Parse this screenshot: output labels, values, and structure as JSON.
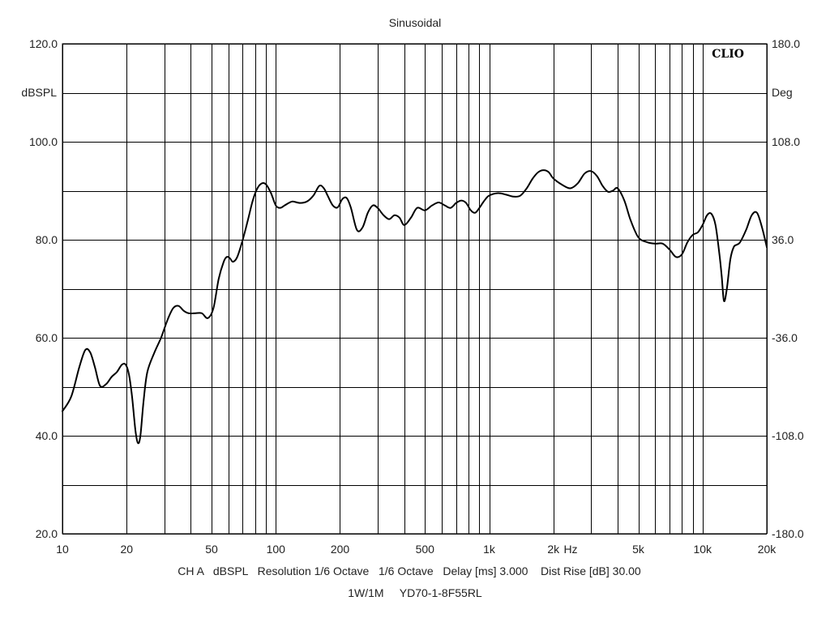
{
  "chart_data": {
    "type": "line",
    "title": "Sinusoidal",
    "x_scale": "log",
    "xlim": [
      10,
      20000
    ],
    "ylim": [
      20,
      120
    ],
    "y2lim": [
      -180,
      180
    ],
    "grid": true,
    "x_ticks": [
      10,
      20,
      50,
      100,
      200,
      500,
      1000,
      2000,
      5000,
      10000,
      20000
    ],
    "x_tick_labels": [
      "10",
      "20",
      "50",
      "100",
      "200",
      "500",
      "1k",
      "2k",
      "5k",
      "10k",
      "20k"
    ],
    "x_unit_label": "Hz",
    "y_ticks": [
      120,
      100,
      80,
      60,
      40,
      20
    ],
    "y_tick_labels": [
      "120.0",
      "100.0",
      "80.0",
      "60.0",
      "40.0",
      "20.0"
    ],
    "y_unit_label": "dBSPL",
    "y2_ticks": [
      180,
      108,
      36,
      -36,
      -108,
      -180
    ],
    "y2_tick_labels": [
      "180.0",
      "108.0",
      "36.0",
      "-36.0",
      "-108.0",
      "-180.0"
    ],
    "y2_unit_label": "Deg",
    "logo": "CLIO",
    "footer_line1": "CH A   dBSPL   Resolution 1/6 Octave   1/6 Octave   Delay [ms] 3.000    Dist Rise [dB] 30.00",
    "footer_line2": "1W/1M     YD70-1-8F55RL",
    "series": [
      {
        "x": [
          10,
          11,
          12,
          12.8,
          13.5,
          14.2,
          15,
          16,
          17,
          18,
          19,
          19.8,
          20.5,
          21.2,
          22,
          22.6,
          23.2,
          24,
          25,
          27,
          29,
          31,
          33,
          35,
          37,
          39,
          42,
          45,
          48,
          51,
          54,
          57,
          59,
          61,
          63,
          66,
          70,
          74,
          78,
          82,
          86,
          90,
          95,
          100,
          105,
          110,
          115,
          120,
          130,
          140,
          150,
          160,
          168,
          175,
          185,
          195,
          205,
          215,
          225,
          240,
          255,
          270,
          285,
          300,
          320,
          340,
          360,
          380,
          400,
          430,
          460,
          500,
          540,
          580,
          620,
          660,
          700,
          740,
          780,
          820,
          860,
          900,
          950,
          1000,
          1100,
          1200,
          1300,
          1400,
          1500,
          1600,
          1700,
          1800,
          1900,
          2000,
          2200,
          2400,
          2600,
          2800,
          3000,
          3200,
          3400,
          3600,
          3800,
          4000,
          4300,
          4600,
          5000,
          5500,
          6000,
          6500,
          7000,
          7500,
          8000,
          8500,
          9000,
          9500,
          10000,
          10500,
          11000,
          11500,
          12000,
          12300,
          12600,
          13000,
          13500,
          14000,
          14500,
          15000,
          16000,
          17000,
          18000,
          19000,
          20000
        ],
        "values": [
          45,
          48,
          54,
          57.5,
          57,
          54,
          50.2,
          50.5,
          52,
          53,
          54.5,
          54.5,
          52.5,
          48,
          41,
          38.5,
          40,
          47,
          53,
          57,
          60,
          63.5,
          66,
          66.5,
          65.5,
          65,
          65,
          65,
          64,
          66,
          72,
          75.5,
          76.5,
          76.2,
          75.5,
          76.5,
          80,
          84,
          88,
          90.5,
          91.5,
          91.3,
          89.5,
          87,
          86.5,
          87,
          87.5,
          87.8,
          87.5,
          87.8,
          89,
          91,
          90.5,
          89,
          87,
          86.6,
          88.3,
          88.5,
          86.5,
          82,
          82.5,
          85.5,
          87,
          86.5,
          85,
          84.2,
          85,
          84.5,
          83,
          84.5,
          86.5,
          86,
          87,
          87.6,
          87,
          86.5,
          87.5,
          88,
          87.5,
          86,
          85.5,
          86.5,
          88,
          89,
          89.5,
          89.2,
          88.8,
          89,
          90.5,
          92.5,
          93.8,
          94.2,
          93.8,
          92.5,
          91.2,
          90.5,
          91.5,
          93.5,
          94,
          93,
          91,
          89.8,
          90,
          90.5,
          88,
          84,
          80.5,
          79.5,
          79.2,
          79.2,
          78,
          76.5,
          77,
          79.5,
          81,
          81.5,
          83,
          85,
          85.3,
          83,
          77,
          72.5,
          67.5,
          70,
          76,
          78.5,
          79,
          79.5,
          82,
          85,
          85.5,
          82.5,
          78.5
        ]
      }
    ]
  }
}
